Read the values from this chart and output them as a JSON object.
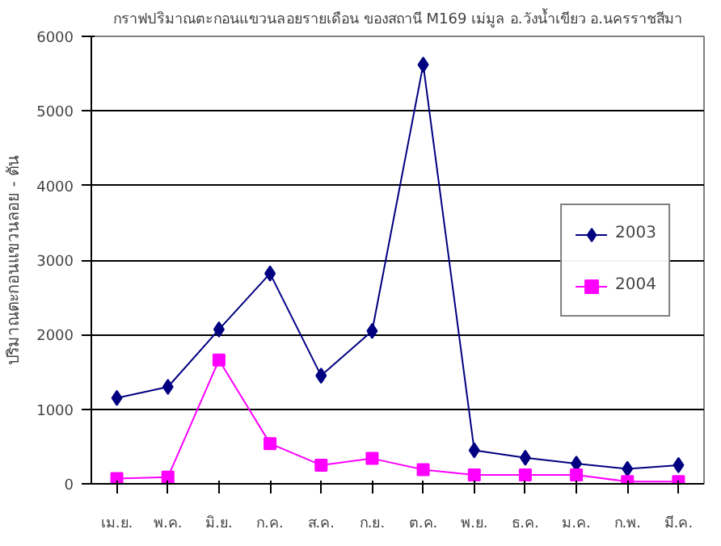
{
  "chart_data": {
    "type": "line",
    "title": "กราฟปริมาณตะกอนแขวนลอยรายเดือน ของสถานี M169 เม่มูล อ.วังน้ำเขียว อ.นครราชสีมา",
    "ylabel": "ปริมาณตะกอนแขวนลอย - ตัน",
    "categories": [
      "เม.ย.",
      "พ.ค.",
      "มิ.ย.",
      "ก.ค.",
      "ส.ค.",
      "ก.ย.",
      "ต.ค.",
      "พ.ย.",
      "ธ.ค.",
      "ม.ค.",
      "ก.พ.",
      "มี.ค."
    ],
    "series": [
      {
        "name": "2003",
        "color": "#000080",
        "marker": "diamond",
        "values": [
          1150,
          1300,
          2070,
          2820,
          1450,
          2050,
          5620,
          450,
          350,
          270,
          200,
          250
        ]
      },
      {
        "name": "2004",
        "color": "#ff00ff",
        "marker": "square",
        "values": [
          70,
          90,
          1660,
          540,
          250,
          340,
          190,
          120,
          120,
          120,
          30,
          30
        ]
      }
    ],
    "ylim": [
      0,
      6000
    ],
    "yticks": [
      0,
      1000,
      2000,
      3000,
      4000,
      5000,
      6000
    ],
    "grid": "y",
    "legend": "right",
    "line_style": "solid"
  }
}
